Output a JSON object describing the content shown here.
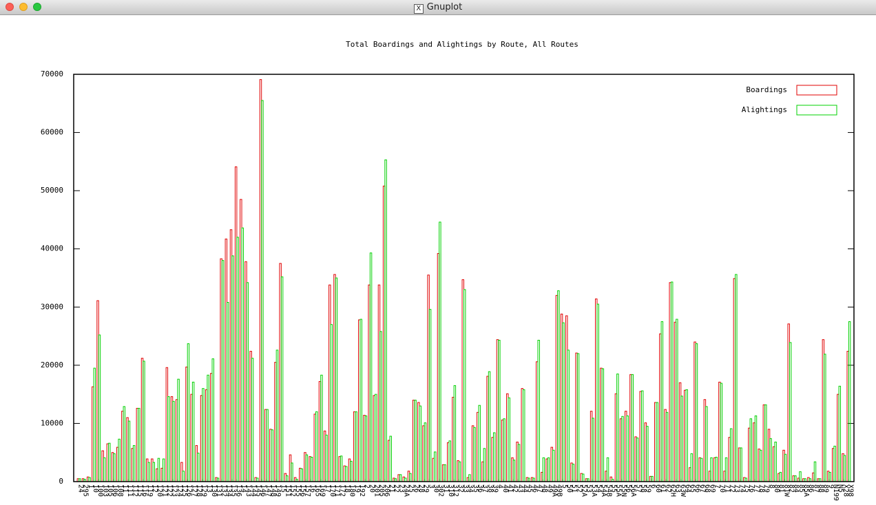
{
  "window": {
    "title": "Gnuplot"
  },
  "chart_data": {
    "type": "bar",
    "title": "Total Boardings and Alightings by Route, All Routes",
    "legend": "top-right",
    "ylim": [
      0,
      70000
    ],
    "yticks": [
      0,
      10000,
      20000,
      30000,
      40000,
      50000,
      60000,
      70000
    ],
    "categories": [
      "24",
      "295",
      "1",
      "10",
      "100",
      "103",
      "105",
      "106",
      "108",
      "11",
      "111",
      "112",
      "115",
      "116",
      "119",
      "12",
      "120",
      "121",
      "122",
      "123",
      "124",
      "125",
      "126",
      "127",
      "128",
      "129",
      "13",
      "130",
      "131",
      "132",
      "134",
      "135",
      "136",
      "14",
      "143",
      "144",
      "145",
      "146",
      "147",
      "148",
      "149",
      "15",
      "151",
      "152",
      "155",
      "156",
      "157",
      "16",
      "165",
      "169",
      "17",
      "170",
      "171",
      "172",
      "18",
      "180",
      "19",
      "192",
      "2",
      "20",
      "201",
      "205",
      "206",
      "21",
      "22",
      "23",
      "24A",
      "25",
      "26",
      "28",
      "29",
      "3",
      "30",
      "302",
      "31",
      "310",
      "312",
      "32",
      "33",
      "34",
      "35",
      "36",
      "37",
      "38",
      "39",
      "4",
      "40",
      "41",
      "42",
      "43",
      "44",
      "45",
      "46",
      "47",
      "48",
      "49",
      "49A",
      "49B",
      "5",
      "50",
      "51",
      "52",
      "52A",
      "53",
      "53A",
      "54",
      "54A",
      "54B",
      "55",
      "55A",
      "55N",
      "56",
      "56A",
      "57",
      "58",
      "59",
      "6",
      "60",
      "61",
      "62",
      "62H",
      "63",
      "63W",
      "64",
      "65",
      "66",
      "67",
      "68",
      "69",
      "7",
      "70",
      "71",
      "72",
      "73",
      "74",
      "75",
      "76",
      "77",
      "78",
      "79",
      "8",
      "80",
      "81",
      "81W",
      "82",
      "84",
      "85",
      "85A",
      "86",
      "87",
      "88",
      "89",
      "9",
      "N199",
      "N5",
      "X28",
      "X98"
    ],
    "series": [
      {
        "name": "Boardings",
        "color": "#e00000",
        "values": [
          500,
          500,
          800,
          16300,
          31100,
          5300,
          6500,
          5000,
          5900,
          12100,
          11000,
          5700,
          12600,
          21200,
          3900,
          3900,
          2200,
          2300,
          19600,
          14600,
          14100,
          3300,
          19700,
          15000,
          6200,
          14800,
          15800,
          18600,
          700,
          38300,
          41700,
          43300,
          54100,
          48500,
          37800,
          22400,
          700,
          69100,
          12400,
          9000,
          20500,
          37500,
          1400,
          4600,
          700,
          2300,
          5000,
          4300,
          11600,
          17200,
          8700,
          33800,
          35600,
          4300,
          2700,
          3900,
          12000,
          27800,
          11400,
          33800,
          14800,
          33800,
          50800,
          7100,
          600,
          1200,
          800,
          1800,
          14000,
          13600,
          9600,
          35500,
          4000,
          39200,
          2900,
          6700,
          14500,
          3600,
          34700,
          700,
          9600,
          11900,
          3400,
          18100,
          7600,
          24400,
          10600,
          15100,
          4100,
          6800,
          16000,
          700,
          700,
          20600,
          1600,
          3900,
          5900,
          32000,
          28800,
          28500,
          3200,
          22100,
          1400,
          500,
          12100,
          31400,
          19500,
          1800,
          800,
          15100,
          10800,
          12100,
          18400,
          7700,
          15500,
          10100,
          900,
          13600,
          25400,
          12400,
          34200,
          27400,
          17000,
          15700,
          2400,
          24000,
          4100,
          14100,
          1800,
          4100,
          17100,
          1800,
          7600,
          34900,
          5800,
          700,
          9200,
          10100,
          5600,
          13200,
          9000,
          6000,
          1400,
          5400,
          27100,
          1000,
          600,
          500,
          700,
          1500,
          500,
          24400,
          1800,
          5700,
          15000,
          4800,
          22400
        ]
      },
      {
        "name": "Alightings",
        "color": "#00d000",
        "values": [
          500,
          400,
          700,
          19500,
          25200,
          4100,
          6600,
          4800,
          7300,
          12900,
          10400,
          6200,
          12600,
          20700,
          3300,
          3300,
          4000,
          3900,
          14600,
          13800,
          17600,
          1800,
          23700,
          17100,
          4900,
          16000,
          18300,
          21100,
          600,
          38000,
          30800,
          38800,
          42000,
          43600,
          34200,
          21200,
          600,
          65500,
          12400,
          8900,
          22600,
          35200,
          1000,
          3200,
          400,
          2200,
          4600,
          4200,
          12000,
          18300,
          8000,
          27000,
          35000,
          4400,
          2600,
          3500,
          12000,
          27900,
          11300,
          39300,
          15000,
          25800,
          55300,
          7800,
          500,
          1200,
          600,
          1400,
          14000,
          13000,
          10100,
          29600,
          5100,
          44600,
          2900,
          7000,
          16500,
          3400,
          33000,
          1200,
          9300,
          13100,
          5700,
          18900,
          8400,
          24300,
          10800,
          14400,
          3700,
          6400,
          15800,
          600,
          600,
          24300,
          4100,
          4100,
          5400,
          32800,
          27300,
          22600,
          3000,
          22000,
          1300,
          500,
          10900,
          30500,
          19400,
          4100,
          400,
          18500,
          11200,
          11300,
          18400,
          7500,
          15600,
          9500,
          900,
          13600,
          27500,
          11900,
          34300,
          27900,
          14700,
          15800,
          4800,
          23700,
          4000,
          12900,
          4100,
          4200,
          16900,
          4100,
          9100,
          35600,
          5800,
          600,
          10800,
          11300,
          5400,
          13200,
          7400,
          6800,
          1600,
          4700,
          23900,
          1000,
          1700,
          500,
          500,
          3400,
          500,
          21900,
          1600,
          6100,
          16400,
          4500,
          27500
        ]
      }
    ]
  }
}
